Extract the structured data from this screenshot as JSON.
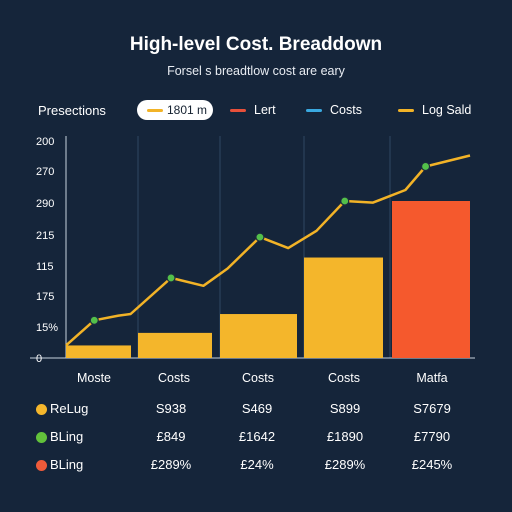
{
  "chart_data": {
    "type": "bar",
    "title": "High-level Cost. Breaddown",
    "subtitle": "Forsel s breadtlow cost are eary",
    "legend_prefix": "Presections",
    "legend": [
      {
        "label": "1801 m",
        "color": "#f2b327",
        "highlighted": true
      },
      {
        "label": "Lert",
        "color": "#e8503a"
      },
      {
        "label": "Costs",
        "color": "#3aa9e0"
      },
      {
        "label": "Log Sald",
        "color": "#f2b327"
      }
    ],
    "y_tick_labels": [
      "200",
      "270",
      "290",
      "215",
      "115",
      "175",
      "15%",
      "0"
    ],
    "categories": [
      "Moste",
      "Costs",
      "Costs",
      "Costs",
      "Matfa"
    ],
    "bar_series": {
      "values": [
        0.08,
        0.16,
        0.28,
        0.64,
        1.0
      ],
      "colors": [
        "#f4b62b",
        "#f4b62b",
        "#f4b62b",
        "#f4b62b",
        "#f5592d"
      ]
    },
    "line_series": {
      "color": "#f2b327",
      "marker_color": "#53c04a",
      "points": [
        [
          0.0,
          0.08
        ],
        [
          0.07,
          0.24
        ],
        [
          0.13,
          0.27
        ],
        [
          0.16,
          0.28
        ],
        [
          0.26,
          0.51
        ],
        [
          0.34,
          0.46
        ],
        [
          0.4,
          0.57
        ],
        [
          0.48,
          0.77
        ],
        [
          0.55,
          0.7
        ],
        [
          0.62,
          0.81
        ],
        [
          0.69,
          1.0
        ],
        [
          0.76,
          0.99
        ],
        [
          0.84,
          1.07
        ],
        [
          0.89,
          1.22
        ],
        [
          1.0,
          1.29
        ]
      ],
      "marker_indices": [
        1,
        4,
        7,
        10,
        13
      ]
    },
    "ylim": [
      0,
      1.4
    ],
    "grid": "vertical"
  },
  "table": {
    "rows": [
      {
        "label": "ReLug",
        "color": "#f5b72c",
        "values": [
          "S938",
          "S469",
          "S899",
          "S7679"
        ]
      },
      {
        "label": "BLing",
        "color": "#62c23b",
        "values": [
          "£849",
          "£1642",
          "£1890",
          "£7790"
        ]
      },
      {
        "label": "BLing",
        "color": "#ef5b3a",
        "values": [
          "£289%",
          "£24%",
          "£289%",
          "£245%"
        ]
      }
    ]
  }
}
